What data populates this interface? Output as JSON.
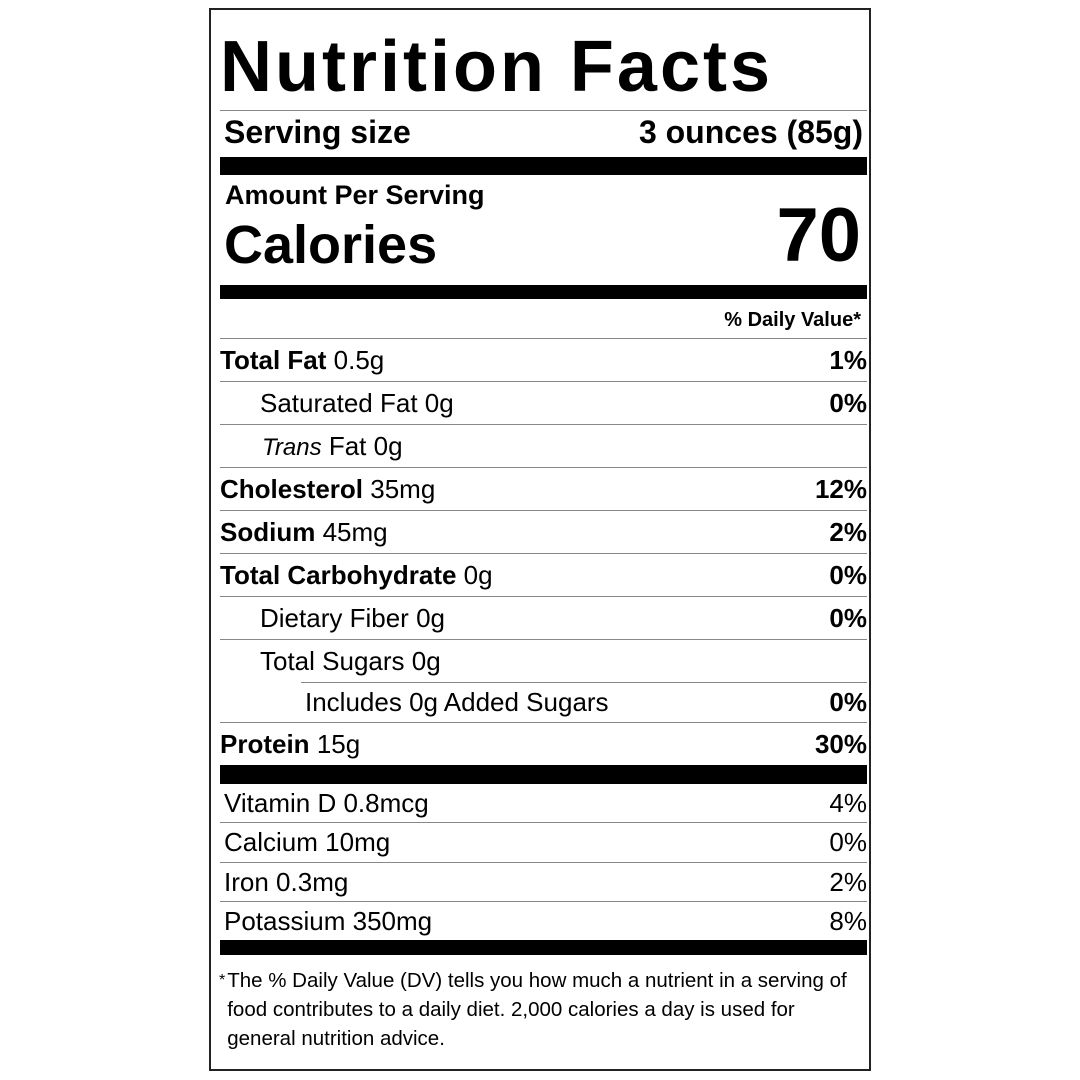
{
  "title": "Nutrition Facts",
  "serving": {
    "label": "Serving size",
    "value": "3 ounces (85g)"
  },
  "calories": {
    "header": "Amount Per Serving",
    "label": "Calories",
    "value": "70"
  },
  "dv_header": "% Daily Value*",
  "nutrients": [
    {
      "name": "Total Fat",
      "amount": "0.5g",
      "dv": "1%"
    },
    {
      "name": "Saturated Fat",
      "amount": "0g",
      "dv": "0%"
    },
    {
      "prefix": "Trans",
      "name": "Fat",
      "amount": "0g"
    },
    {
      "name": "Cholesterol",
      "amount": "35mg",
      "dv": "12%"
    },
    {
      "name": "Sodium",
      "amount": "45mg",
      "dv": "2%"
    },
    {
      "name": "Total Carbohydrate",
      "amount": "0g",
      "dv": "0%"
    },
    {
      "name": "Dietary Fiber",
      "amount": "0g",
      "dv": "0%"
    },
    {
      "name": "Total Sugars",
      "amount": "0g"
    },
    {
      "name": "Includes 0g Added Sugars",
      "dv": "0%"
    },
    {
      "name": "Protein",
      "amount": "15g",
      "dv": "30%"
    }
  ],
  "vitamins": [
    {
      "name": "Vitamin D",
      "amount": "0.8mcg",
      "dv": "4%"
    },
    {
      "name": "Calcium",
      "amount": "10mg",
      "dv": "0%"
    },
    {
      "name": "Iron",
      "amount": "0.3mg",
      "dv": "2%"
    },
    {
      "name": "Potassium",
      "amount": "350mg",
      "dv": "8%"
    }
  ],
  "footnote": {
    "mark": "*",
    "text": "The % Daily Value (DV) tells you how much a nutrient in a serving of food contributes to a daily diet. 2,000 calories a day is used for general nutrition advice."
  }
}
